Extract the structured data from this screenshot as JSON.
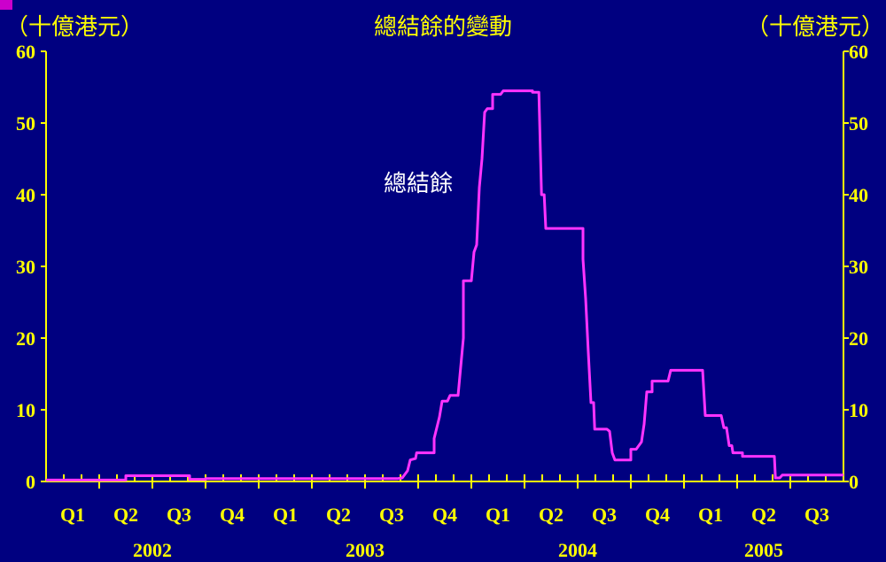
{
  "colors": {
    "background": "#000080",
    "axis": "#ffff00",
    "text": "#ffff00",
    "series": "#ff33ff",
    "series_label": "#ffffff"
  },
  "chart_data": {
    "type": "line",
    "title": "總結餘的變動",
    "ylabel_left": "（十億港元）",
    "ylabel_right": "（十億港元）",
    "ylim": [
      0,
      60
    ],
    "yticks": [
      0,
      10,
      20,
      30,
      40,
      50,
      60
    ],
    "quarters": [
      "Q1",
      "Q2",
      "Q3",
      "Q4",
      "Q1",
      "Q2",
      "Q3",
      "Q4",
      "Q1",
      "Q2",
      "Q3",
      "Q4",
      "Q1",
      "Q2",
      "Q3"
    ],
    "years": [
      {
        "label": "2002",
        "quarter_span": [
          0,
          4
        ]
      },
      {
        "label": "2003",
        "quarter_span": [
          4,
          8
        ]
      },
      {
        "label": "2004",
        "quarter_span": [
          8,
          12
        ]
      },
      {
        "label": "2005",
        "quarter_span": [
          12,
          15
        ]
      }
    ],
    "x_unit": "quarter index (0 = start of Q1 2002)",
    "series": [
      {
        "name": "總結餘",
        "points": [
          [
            0.0,
            0.2
          ],
          [
            1.5,
            0.2
          ],
          [
            1.5,
            0.8
          ],
          [
            2.7,
            0.8
          ],
          [
            2.7,
            0.3
          ],
          [
            3.0,
            0.3
          ],
          [
            3.0,
            0.4
          ],
          [
            6.6,
            0.4
          ],
          [
            6.7,
            0.5
          ],
          [
            6.8,
            1.5
          ],
          [
            6.85,
            3.0
          ],
          [
            6.95,
            3.2
          ],
          [
            6.97,
            4.0
          ],
          [
            7.3,
            4.0
          ],
          [
            7.3,
            6.0
          ],
          [
            7.4,
            9.0
          ],
          [
            7.45,
            11.2
          ],
          [
            7.55,
            11.2
          ],
          [
            7.6,
            12.0
          ],
          [
            7.75,
            12.0
          ],
          [
            7.85,
            20.0
          ],
          [
            7.85,
            28.0
          ],
          [
            8.0,
            28.0
          ],
          [
            8.05,
            32.0
          ],
          [
            8.1,
            33.0
          ],
          [
            8.15,
            41.0
          ],
          [
            8.2,
            45.0
          ],
          [
            8.25,
            51.5
          ],
          [
            8.3,
            52.0
          ],
          [
            8.4,
            52.0
          ],
          [
            8.4,
            54.0
          ],
          [
            8.55,
            54.0
          ],
          [
            8.6,
            54.5
          ],
          [
            9.15,
            54.5
          ],
          [
            9.15,
            54.3
          ],
          [
            9.27,
            54.3
          ],
          [
            9.32,
            40.0
          ],
          [
            9.37,
            40.0
          ],
          [
            9.4,
            35.3
          ],
          [
            10.1,
            35.3
          ],
          [
            10.1,
            31.0
          ],
          [
            10.15,
            25.5
          ],
          [
            10.2,
            18.0
          ],
          [
            10.25,
            11.0
          ],
          [
            10.3,
            11.0
          ],
          [
            10.32,
            7.3
          ],
          [
            10.55,
            7.3
          ],
          [
            10.6,
            7.0
          ],
          [
            10.65,
            4.0
          ],
          [
            10.7,
            3.0
          ],
          [
            11.0,
            3.0
          ],
          [
            11.0,
            4.5
          ],
          [
            11.1,
            4.5
          ],
          [
            11.2,
            5.5
          ],
          [
            11.25,
            8.0
          ],
          [
            11.3,
            12.5
          ],
          [
            11.4,
            12.5
          ],
          [
            11.4,
            14.0
          ],
          [
            11.7,
            14.0
          ],
          [
            11.75,
            15.5
          ],
          [
            12.35,
            15.5
          ],
          [
            12.4,
            9.2
          ],
          [
            12.7,
            9.2
          ],
          [
            12.75,
            7.5
          ],
          [
            12.8,
            7.5
          ],
          [
            12.85,
            5.0
          ],
          [
            12.9,
            5.0
          ],
          [
            12.92,
            4.0
          ],
          [
            13.1,
            4.0
          ],
          [
            13.1,
            3.5
          ],
          [
            13.7,
            3.5
          ],
          [
            13.72,
            0.5
          ],
          [
            13.8,
            0.5
          ],
          [
            13.85,
            0.9
          ],
          [
            15.0,
            0.9
          ]
        ]
      }
    ]
  }
}
